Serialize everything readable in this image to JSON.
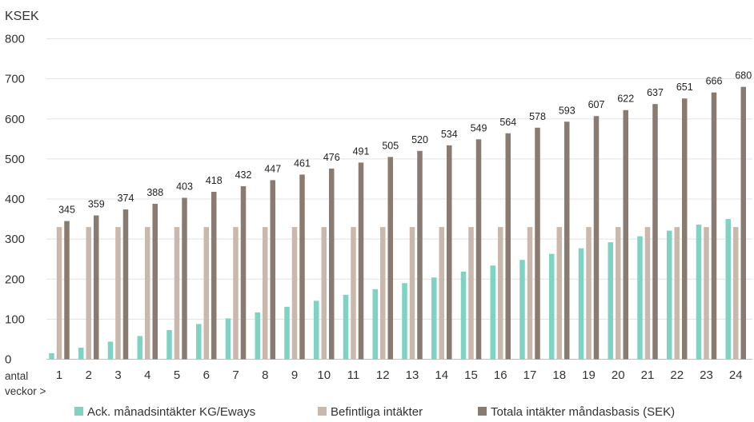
{
  "chart_data": {
    "type": "bar",
    "ylabel": "KSEK",
    "xlabel": "antal veckor >",
    "xlabel_lines": [
      "antal",
      "veckor >"
    ],
    "ylim": [
      0,
      800
    ],
    "yticks": [
      0,
      100,
      200,
      300,
      400,
      500,
      600,
      700,
      800
    ],
    "grid": true,
    "legend_position": "bottom",
    "categories": [
      "1",
      "2",
      "3",
      "4",
      "5",
      "6",
      "7",
      "8",
      "9",
      "10",
      "11",
      "12",
      "13",
      "14",
      "15",
      "16",
      "17",
      "18",
      "19",
      "20",
      "21",
      "22",
      "23",
      "24"
    ],
    "series": [
      {
        "name": "Ack. månadsintäkter KG/Eways",
        "color": "#7fd3c2",
        "values": [
          15,
          29,
          44,
          58,
          73,
          88,
          102,
          117,
          131,
          146,
          161,
          175,
          190,
          204,
          219,
          234,
          248,
          263,
          277,
          292,
          307,
          321,
          336,
          350
        ]
      },
      {
        "name": "Befintliga intäkter",
        "color": "#c9b8ab",
        "values": [
          330,
          330,
          330,
          330,
          330,
          330,
          330,
          330,
          330,
          330,
          330,
          330,
          330,
          330,
          330,
          330,
          330,
          330,
          330,
          330,
          330,
          330,
          330,
          330
        ]
      },
      {
        "name": "Totala intäkter måndasbasis (SEK)",
        "color": "#8a7b70",
        "values": [
          345,
          359,
          374,
          388,
          403,
          418,
          432,
          447,
          461,
          476,
          491,
          505,
          520,
          534,
          549,
          564,
          578,
          593,
          607,
          622,
          637,
          651,
          666,
          680
        ],
        "data_labels": [
          "345",
          "359",
          "374",
          "388",
          "403",
          "418",
          "432",
          "447",
          "461",
          "476",
          "491",
          "505",
          "520",
          "534",
          "549",
          "564",
          "578",
          "593",
          "607",
          "622",
          "637",
          "651",
          "666",
          "680"
        ]
      }
    ]
  }
}
